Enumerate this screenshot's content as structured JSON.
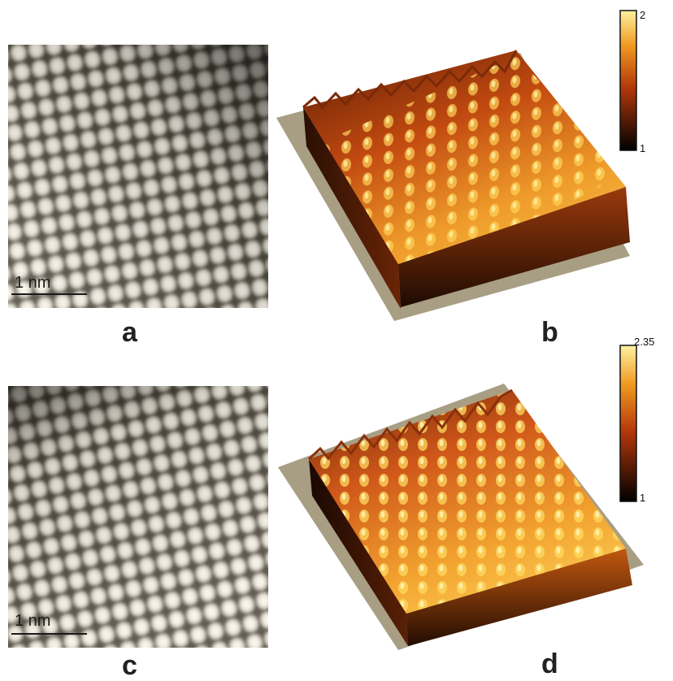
{
  "panels": {
    "a": {
      "label": "a",
      "scale_bar": "1 nm"
    },
    "b": {
      "label": "b",
      "colorbar": {
        "max": "2",
        "min": "1"
      }
    },
    "c": {
      "label": "c",
      "scale_bar": "1 nm"
    },
    "d": {
      "label": "d",
      "colorbar": {
        "max": "2.35",
        "min": "1"
      }
    }
  },
  "colors": {
    "stm_light": "#f1ecdf",
    "stm_dark": "#3a352c",
    "surface_base": "#a89e83",
    "heat_low": "#000000",
    "heat_mid": "#b5380a",
    "heat_high": "#fff1a0"
  }
}
